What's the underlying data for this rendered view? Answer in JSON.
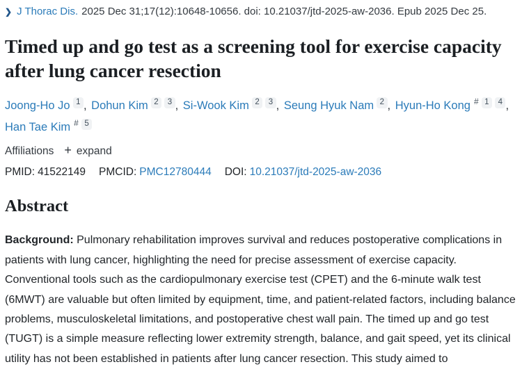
{
  "citation": {
    "chevron_icon": "❯",
    "journal": "J Thorac Dis.",
    "details": "2025 Dec 31;17(12):10648-10656. doi: 10.21037/jtd-2025-aw-2036. Epub 2025 Dec 25."
  },
  "title": "Timed up and go test as a screening tool for exercise capacity after lung cancer resection",
  "authors": {
    "separator": ",",
    "hash_marker": "#",
    "list": [
      {
        "name": "Joong-Ho Jo",
        "sups": [
          "1"
        ]
      },
      {
        "name": "Dohun Kim",
        "sups": [
          "2",
          "3"
        ]
      },
      {
        "name": "Si-Wook Kim",
        "sups": [
          "2",
          "3"
        ]
      },
      {
        "name": "Seung Hyuk Nam",
        "sups": [
          "2"
        ]
      },
      {
        "name": "Hyun-Ho Kong",
        "hash": "#",
        "sups": [
          "1",
          "4"
        ]
      },
      {
        "name": "Han Tae Kim",
        "hash": "#",
        "sups": [
          "5"
        ]
      }
    ]
  },
  "affiliations": {
    "label": "Affiliations",
    "expand_icon": "+",
    "expand_label": "expand"
  },
  "ids": {
    "pmid_label": "PMID:",
    "pmid_value": "41522149",
    "pmcid_label": "PMCID:",
    "pmcid_value": "PMC12780444",
    "doi_label": "DOI:",
    "doi_value": "10.21037/jtd-2025-aw-2036"
  },
  "abstract": {
    "heading": "Abstract",
    "background_label": "Background:",
    "background_text": " Pulmonary rehabilitation improves survival and reduces postoperative complications in patients with lung cancer, highlighting the need for precise assessment of exercise capacity. Conventional tools such as the cardiopulmonary exercise test (CPET) and the 6-minute walk test (6MWT) are valuable but often limited by equipment, time, and patient-related factors, including balance problems, musculoskeletal limitations, and postoperative chest wall pain. The timed up and go test (TUGT) is a simple measure reflecting lower extremity strength, balance, and gait speed, yet its clinical utility has not been established in patients after lung cancer resection. This study aimed to"
  },
  "colors": {
    "link": "#2b7bb9",
    "text": "#212529",
    "title": "#1b1f23",
    "badge_bg": "#f0f2f4",
    "chevron": "#20558a"
  }
}
